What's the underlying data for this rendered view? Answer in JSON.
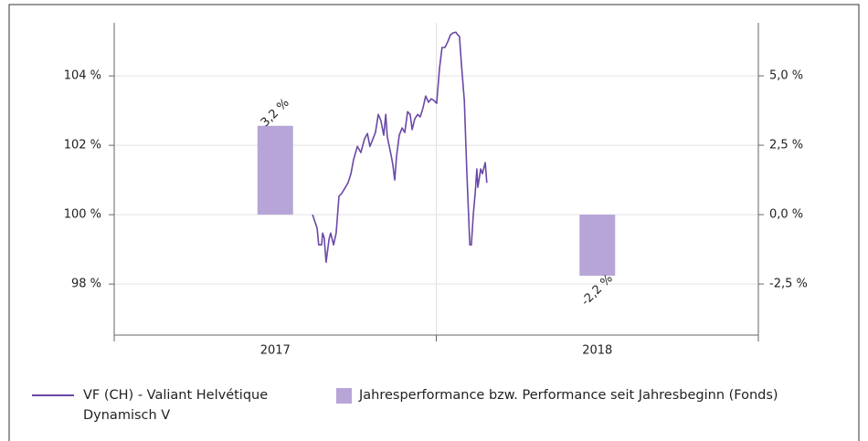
{
  "chart_data": {
    "type": "combo",
    "categories": [
      "2017",
      "2018"
    ],
    "xlim": [
      2017,
      2019
    ],
    "ylim": [
      96.53,
      105.53
    ],
    "yticks": [
      {
        "value": 98,
        "label": "98 %"
      },
      {
        "value": 100,
        "label": "100 %"
      },
      {
        "value": 102,
        "label": "102 %"
      },
      {
        "value": 104,
        "label": "104 %"
      }
    ],
    "y2lim": [
      -4.34,
      6.91
    ],
    "y2ticks": [
      {
        "value": -2.5,
        "label": "-2,5 %"
      },
      {
        "value": 0,
        "label": "0,0 %"
      },
      {
        "value": 2.5,
        "label": "2,5 %"
      },
      {
        "value": 5,
        "label": "5,0 %"
      }
    ],
    "grid": true,
    "series": [
      {
        "name": "VF (CH) - Valiant Helvétique Dynamisch V",
        "type": "line",
        "color": "#6a48a6",
        "x": [
          2017.616,
          2017.63,
          2017.635,
          2017.644,
          2017.647,
          2017.652,
          2017.658,
          2017.667,
          2017.672,
          2017.681,
          2017.689,
          2017.698,
          2017.706,
          2017.718,
          2017.726,
          2017.735,
          2017.743,
          2017.755,
          2017.766,
          2017.777,
          2017.786,
          2017.794,
          2017.803,
          2017.811,
          2017.82,
          2017.828,
          2017.837,
          2017.843,
          2017.848,
          2017.86,
          2017.865,
          2017.871,
          2017.877,
          2017.885,
          2017.894,
          2017.902,
          2017.911,
          2017.919,
          2017.925,
          2017.933,
          2017.942,
          2017.95,
          2017.959,
          2017.967,
          2017.976,
          2017.984,
          2017.993,
          2018.001,
          2018.01,
          2018.018,
          2018.027,
          2018.035,
          2018.044,
          2018.052,
          2018.061,
          2018.067,
          2018.072,
          2018.078,
          2018.087,
          2018.095,
          2018.104,
          2018.109,
          2018.115,
          2018.121,
          2018.126,
          2018.129,
          2018.138,
          2018.143,
          2018.152,
          2018.157
        ],
        "values": [
          100.0,
          99.61,
          99.13,
          99.13,
          99.47,
          99.34,
          98.63,
          99.29,
          99.47,
          99.13,
          99.47,
          100.53,
          100.61,
          100.79,
          100.92,
          101.18,
          101.58,
          101.97,
          101.79,
          102.18,
          102.34,
          101.97,
          102.18,
          102.37,
          102.89,
          102.71,
          102.29,
          102.89,
          102.24,
          101.71,
          101.45,
          101.0,
          101.71,
          102.29,
          102.5,
          102.37,
          102.97,
          102.89,
          102.45,
          102.76,
          102.89,
          102.82,
          103.08,
          103.42,
          103.24,
          103.34,
          103.29,
          103.21,
          104.21,
          104.82,
          104.82,
          104.97,
          105.18,
          105.24,
          105.26,
          105.18,
          105.13,
          104.34,
          103.29,
          101.18,
          99.13,
          99.13,
          100.0,
          100.66,
          101.32,
          100.79,
          101.32,
          101.18,
          101.5,
          100.92
        ]
      },
      {
        "name": "Jahresperformance bzw. Performance seit Jahresbeginn (Fonds)",
        "type": "bar",
        "axis": "y2",
        "color": "#b7a5d8",
        "values": [
          3.2,
          -2.2
        ],
        "value_labels": [
          "3,2 %",
          "-2,2 %"
        ]
      }
    ]
  }
}
